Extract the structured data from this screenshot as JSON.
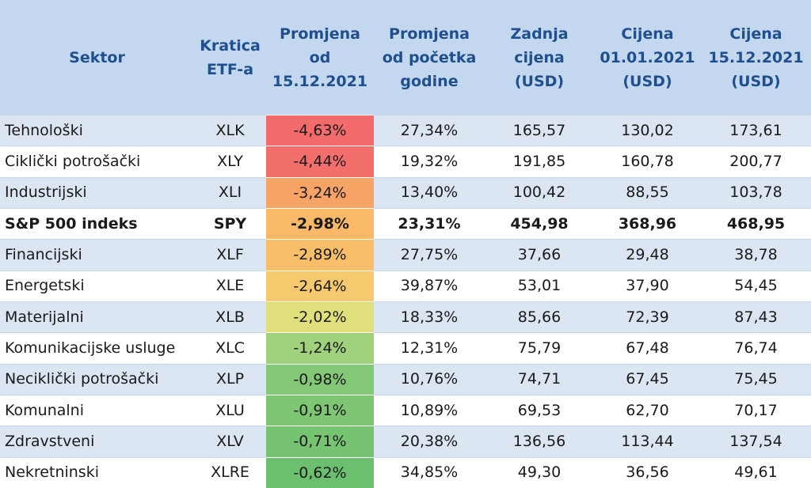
{
  "table": {
    "header": [
      [
        "Sektor"
      ],
      [
        "Kratica",
        "ETF-a"
      ],
      [
        "Promjena",
        "od",
        "15.12.2021"
      ],
      [
        "Promjena",
        "od početka",
        "godine"
      ],
      [
        "Zadnja",
        "cijena",
        "(USD)"
      ],
      [
        "Cijena",
        "01.01.2021",
        "(USD)"
      ],
      [
        "Cijena",
        "15.12.2021",
        "(USD)"
      ]
    ],
    "rows": [
      [
        "Tehnološki",
        "XLK",
        "-4,63%",
        "27,34%",
        "165,57",
        "130,02",
        "173,61"
      ],
      [
        "Ciklički potrošački",
        "XLY",
        "-4,44%",
        "19,32%",
        "191,85",
        "160,78",
        "200,77"
      ],
      [
        "Industrijski",
        "XLI",
        "-3,24%",
        "13,40%",
        "100,42",
        "88,55",
        "103,78"
      ],
      [
        "S&P 500 indeks",
        "SPY",
        "-2,98%",
        "23,31%",
        "454,98",
        "368,96",
        "468,95"
      ],
      [
        "Financijski",
        "XLF",
        "-2,89%",
        "27,75%",
        "37,66",
        "29,48",
        "38,78"
      ],
      [
        "Energetski",
        "XLE",
        "-2,64%",
        "39,87%",
        "53,01",
        "37,90",
        "54,45"
      ],
      [
        "Materijalni",
        "XLB",
        "-2,02%",
        "18,33%",
        "85,66",
        "72,39",
        "87,43"
      ],
      [
        "Komunikacijske usluge",
        "XLC",
        "-1,24%",
        "12,31%",
        "75,79",
        "67,48",
        "76,74"
      ],
      [
        "Neciklički potrošački",
        "XLP",
        "-0,98%",
        "10,76%",
        "74,71",
        "67,45",
        "75,45"
      ],
      [
        "Komunalni",
        "XLU",
        "-0,91%",
        "10,89%",
        "69,53",
        "62,70",
        "70,17"
      ],
      [
        "Zdravstveni",
        "XLV",
        "-0,71%",
        "20,38%",
        "136,56",
        "113,44",
        "137,54"
      ],
      [
        "Nekretninski",
        "XLRE",
        "-0,62%",
        "34,85%",
        "49,30",
        "36,56",
        "49,61"
      ]
    ],
    "bold_row": 3,
    "change_colors": [
      "#f36b6b",
      "#f36f6c",
      "#f7a466",
      "#f9b968",
      "#f9be6a",
      "#f6c96e",
      "#dfe07b",
      "#a0d17c",
      "#83c876",
      "#7fc674",
      "#76c372",
      "#6bbf6e"
    ]
  }
}
